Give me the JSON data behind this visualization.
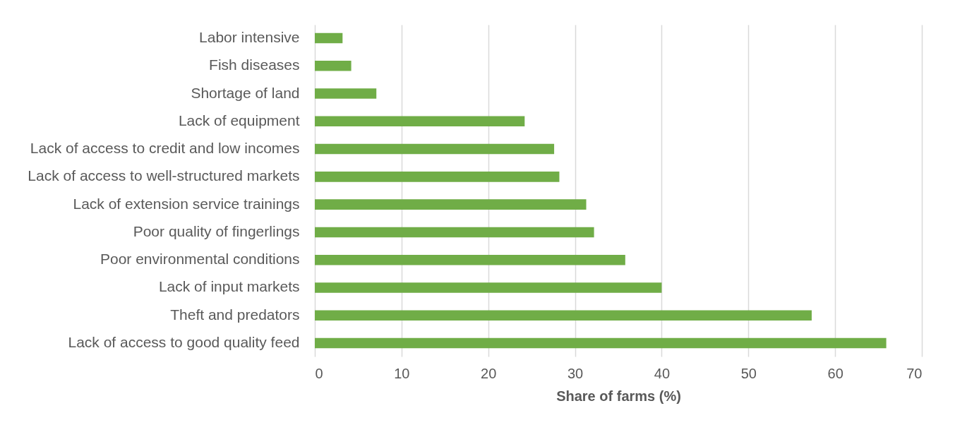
{
  "chart_data": {
    "type": "bar",
    "orientation": "horizontal",
    "categories": [
      "Labor intensive",
      "Fish diseases",
      "Shortage of land",
      "Lack of equipment",
      "Lack of access to credit and low incomes",
      "Lack of access to well-structured markets",
      "Lack of extension service trainings",
      "Poor quality of fingerlings",
      "Poor environmental conditions",
      "Lack of input markets",
      "Theft and predators",
      "Lack of access to good quality feed"
    ],
    "values": [
      3.2,
      4.2,
      7.1,
      24.2,
      27.6,
      28.2,
      31.3,
      32.2,
      35.8,
      40.0,
      57.3,
      65.9
    ],
    "color": "#70ad47",
    "xlabel": "Share of farms (%)",
    "xlim": [
      0,
      70
    ],
    "xticks": [
      0,
      10,
      20,
      30,
      40,
      50,
      60,
      70
    ],
    "grid": "x"
  }
}
